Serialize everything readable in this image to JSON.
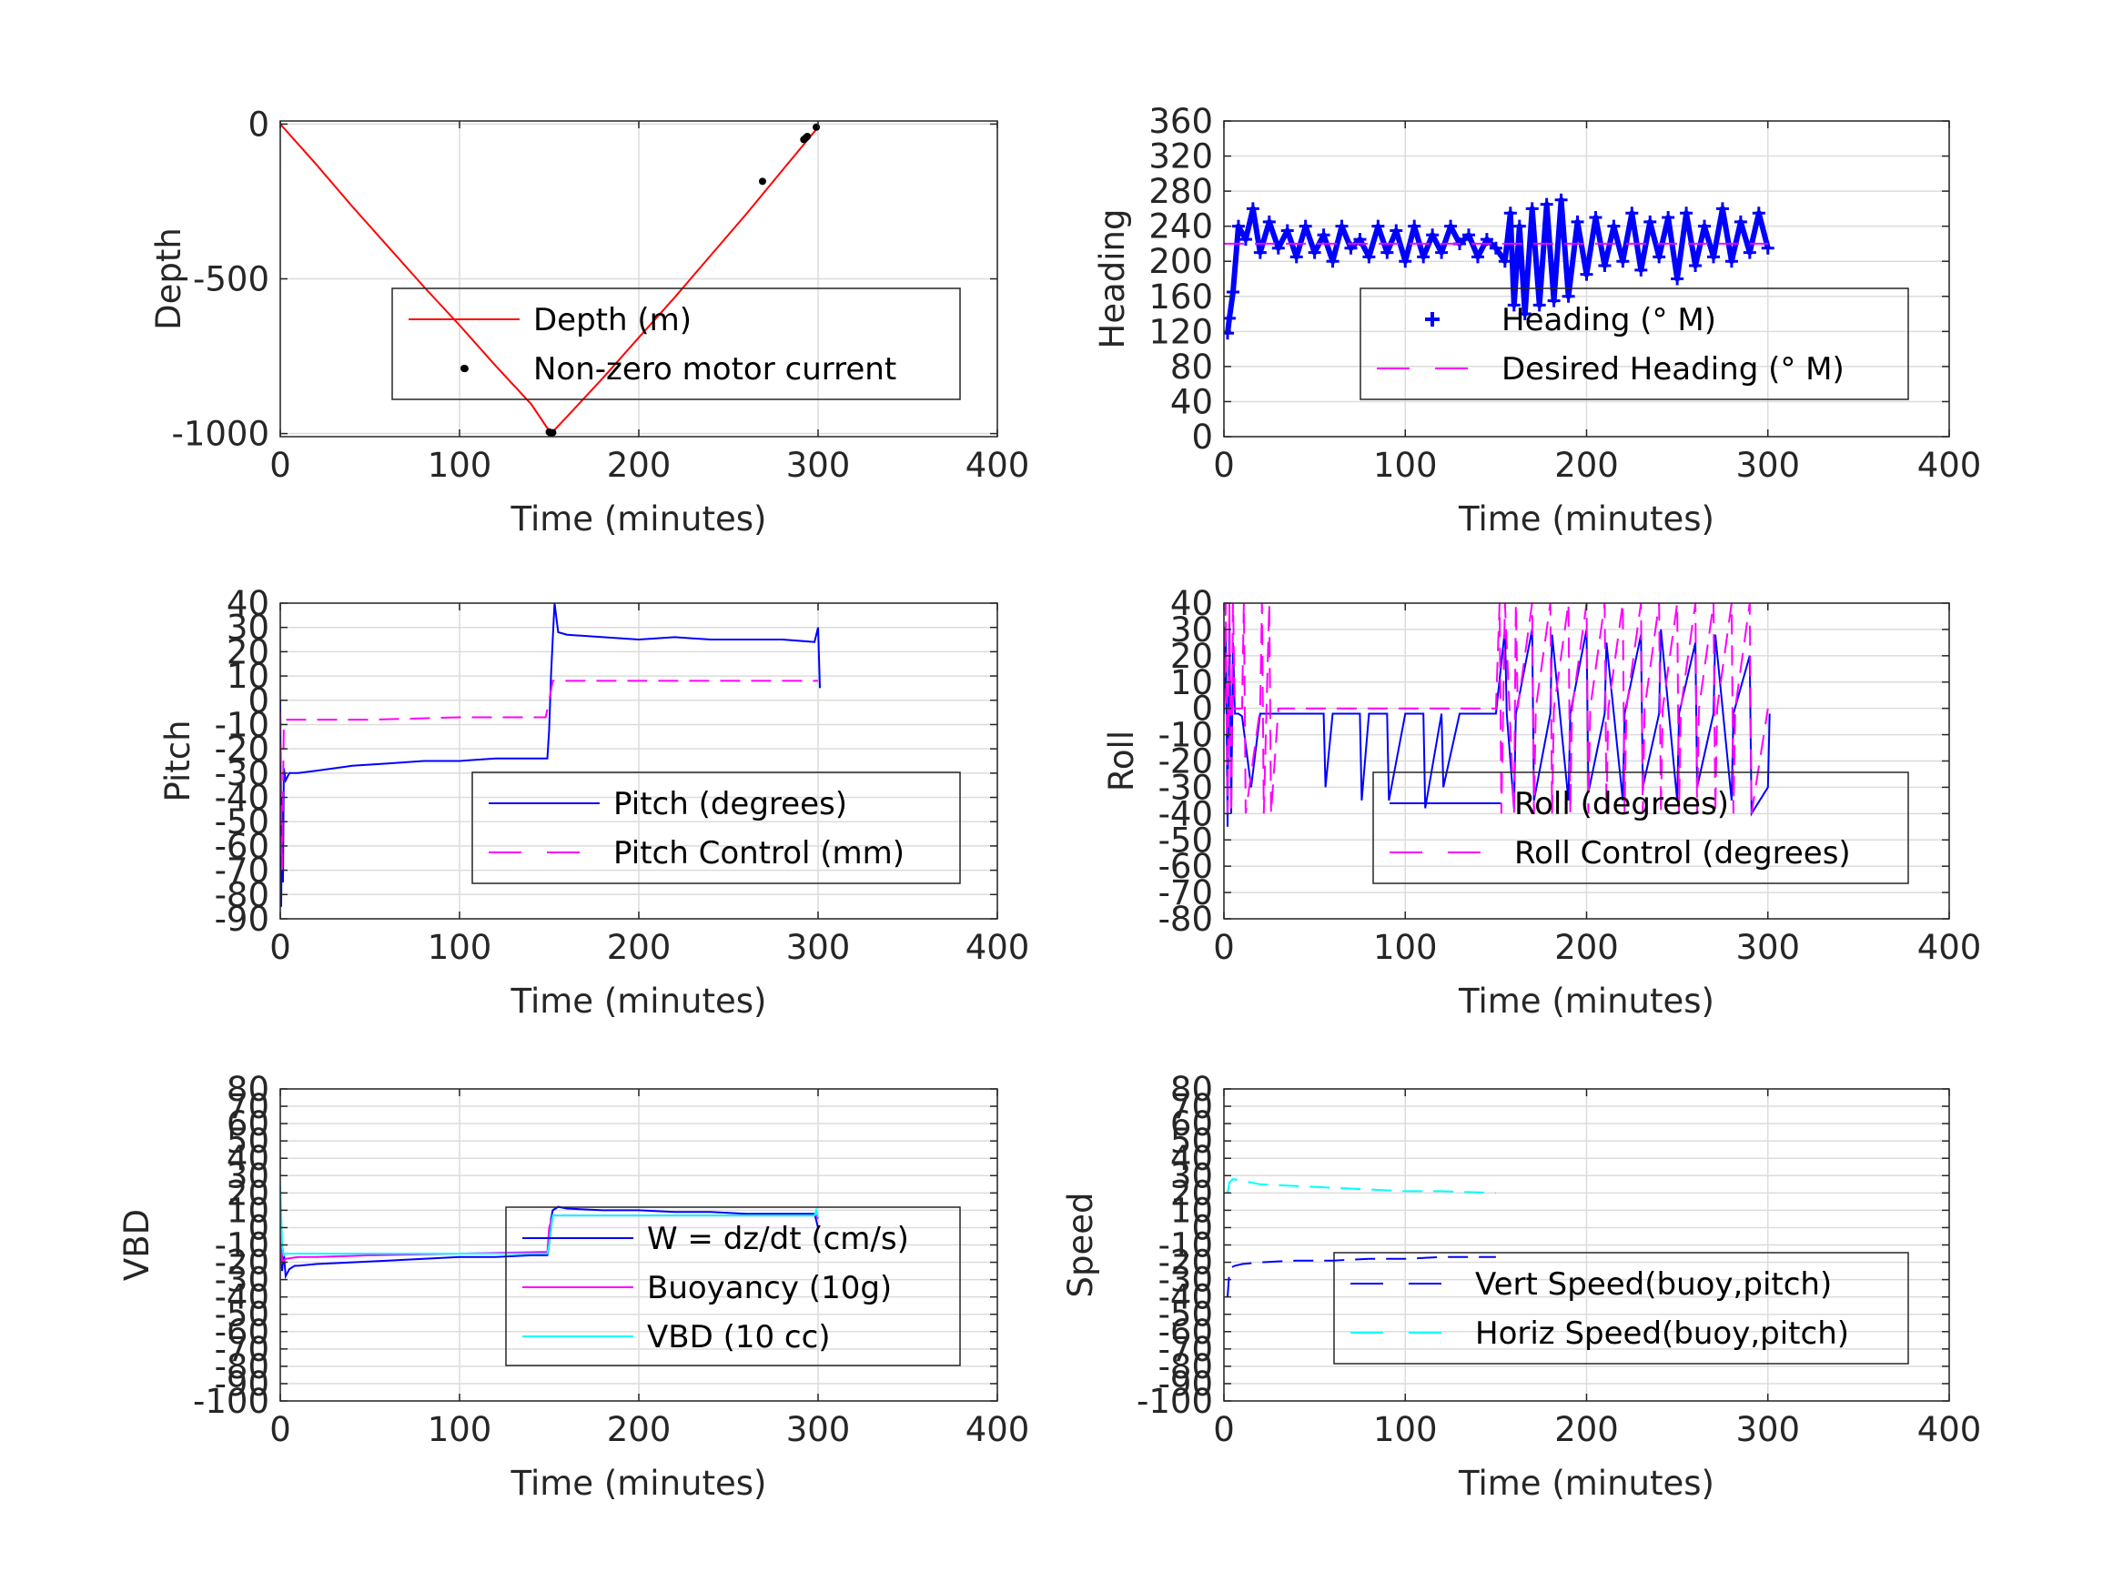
{
  "chart_data": [
    {
      "id": "depth",
      "type": "line",
      "xlabel": "Time (minutes)",
      "ylabel": "Depth",
      "xlim": [
        0,
        400
      ],
      "ylim": [
        -1010,
        10
      ],
      "xticks": [
        0,
        100,
        200,
        300,
        400
      ],
      "yticks": [
        -1000,
        -500,
        0
      ],
      "grid": true,
      "legend_position": "center-right",
      "series": [
        {
          "name": "Depth (m)",
          "color": "#ff0000",
          "style": "solid",
          "x": [
            0,
            20,
            40,
            60,
            80,
            100,
            120,
            140,
            151,
            160,
            180,
            200,
            220,
            240,
            260,
            280,
            300
          ],
          "y": [
            0,
            -130,
            -265,
            -395,
            -525,
            -650,
            -780,
            -905,
            -1000,
            -945,
            -820,
            -690,
            -560,
            -425,
            -290,
            -150,
            -10
          ]
        },
        {
          "name": "Non-zero motor current",
          "color": "#000000",
          "style": "dots",
          "x": [
            103,
            150,
            151,
            152,
            269,
            292,
            293,
            294,
            299
          ],
          "y": [
            -790,
            -995,
            -1000,
            -997,
            -185,
            -50,
            -45,
            -40,
            -10
          ]
        }
      ]
    },
    {
      "id": "heading",
      "type": "line",
      "xlabel": "Time (minutes)",
      "ylabel": "Heading",
      "xlim": [
        0,
        400
      ],
      "ylim": [
        0,
        360
      ],
      "xticks": [
        0,
        100,
        200,
        300,
        400
      ],
      "yticks": [
        0,
        40,
        80,
        120,
        160,
        200,
        240,
        280,
        320,
        360
      ],
      "grid": true,
      "legend_position": "center-right",
      "series": [
        {
          "name": "Heading (° M)",
          "color": "#0000ff",
          "style": "plus",
          "x": [
            2,
            3,
            5,
            8,
            12,
            16,
            20,
            25,
            30,
            35,
            40,
            45,
            50,
            55,
            60,
            65,
            70,
            75,
            80,
            85,
            90,
            95,
            100,
            105,
            110,
            115,
            120,
            125,
            130,
            135,
            140,
            145,
            150,
            155,
            158,
            160,
            163,
            166,
            170,
            174,
            178,
            182,
            186,
            190,
            195,
            200,
            205,
            210,
            215,
            220,
            225,
            230,
            235,
            240,
            245,
            250,
            255,
            260,
            265,
            270,
            275,
            280,
            285,
            290,
            295,
            300
          ],
          "y": [
            118,
            135,
            165,
            240,
            225,
            260,
            210,
            245,
            215,
            235,
            205,
            240,
            210,
            230,
            200,
            240,
            215,
            225,
            205,
            240,
            210,
            235,
            200,
            240,
            205,
            230,
            210,
            240,
            220,
            230,
            205,
            225,
            215,
            200,
            255,
            150,
            240,
            140,
            260,
            150,
            265,
            155,
            270,
            160,
            245,
            185,
            250,
            195,
            240,
            200,
            255,
            190,
            245,
            205,
            250,
            180,
            255,
            195,
            240,
            205,
            260,
            200,
            245,
            210,
            255,
            215
          ]
        },
        {
          "name": "Desired Heading (° M)",
          "color": "#ff00ff",
          "style": "dashed",
          "x": [
            0,
            300
          ],
          "y": [
            220,
            220
          ]
        }
      ]
    },
    {
      "id": "pitch",
      "type": "line",
      "xlabel": "Time (minutes)",
      "ylabel": "Pitch",
      "xlim": [
        0,
        400
      ],
      "ylim": [
        -90,
        40
      ],
      "xticks": [
        0,
        100,
        200,
        300,
        400
      ],
      "yticks": [
        -90,
        -80,
        -70,
        -60,
        -50,
        -40,
        -30,
        -20,
        -10,
        0,
        10,
        20,
        30,
        40
      ],
      "grid": true,
      "legend_position": "center-right",
      "series": [
        {
          "name": "Pitch (degrees)",
          "color": "#0000ff",
          "style": "solid",
          "x": [
            0,
            0.5,
            1,
            1.5,
            2,
            3,
            5,
            10,
            20,
            40,
            60,
            80,
            100,
            120,
            140,
            149,
            150,
            151,
            152,
            153,
            155,
            160,
            180,
            200,
            220,
            240,
            260,
            280,
            298,
            300,
            301
          ],
          "y": [
            0,
            -85,
            -40,
            -75,
            -28,
            -33,
            -30,
            -30,
            -29,
            -27,
            -26,
            -25,
            -25,
            -24,
            -24,
            -24,
            -12,
            10,
            25,
            40,
            28,
            27,
            26,
            25,
            26,
            25,
            25,
            25,
            24,
            30,
            5
          ]
        },
        {
          "name": "Pitch Control (mm)",
          "color": "#ff00ff",
          "style": "dashed",
          "x": [
            0,
            1,
            2,
            3,
            10,
            50,
            100,
            148,
            150,
            152,
            160,
            200,
            250,
            299,
            300
          ],
          "y": [
            -5,
            -70,
            -10,
            -8,
            -8,
            -8,
            -7,
            -7,
            0,
            8,
            8,
            8,
            8,
            8,
            8
          ]
        }
      ]
    },
    {
      "id": "roll",
      "type": "line",
      "xlabel": "Time (minutes)",
      "ylabel": "Roll",
      "xlim": [
        0,
        400
      ],
      "ylim": [
        -80,
        40
      ],
      "xticks": [
        0,
        100,
        200,
        300,
        400
      ],
      "yticks": [
        -80,
        -70,
        -60,
        -50,
        -40,
        -30,
        -20,
        -10,
        0,
        10,
        20,
        30,
        40
      ],
      "grid": true,
      "legend_position": "center-right",
      "series": [
        {
          "name": "Roll (degrees)",
          "color": "#0000ff",
          "style": "solid",
          "x": [
            0,
            1,
            2,
            3,
            4,
            5,
            6,
            8,
            10,
            15,
            20,
            30,
            40,
            50,
            55,
            56,
            60,
            75,
            76,
            80,
            90,
            91,
            100,
            110,
            111,
            120,
            121,
            130,
            150,
            155,
            156,
            160,
            161,
            170,
            171,
            180,
            181,
            190,
            191,
            200,
            201,
            210,
            211,
            220,
            221,
            230,
            231,
            240,
            241,
            250,
            251,
            260,
            261,
            270,
            271,
            280,
            281,
            290,
            291,
            300,
            301
          ],
          "y": [
            -2,
            30,
            -45,
            35,
            -40,
            25,
            -2,
            -2,
            -3,
            -30,
            -2,
            -2,
            -2,
            -2,
            -2,
            -30,
            -2,
            -2,
            -35,
            -2,
            -2,
            -35,
            -2,
            -2,
            -38,
            -2,
            -30,
            -2,
            -2,
            30,
            -2,
            -38,
            -2,
            30,
            -35,
            -2,
            28,
            -35,
            -2,
            30,
            -32,
            -2,
            25,
            -35,
            -2,
            28,
            -30,
            -2,
            30,
            -35,
            -2,
            25,
            -30,
            -2,
            28,
            -35,
            -2,
            20,
            -40,
            -30,
            -2
          ]
        },
        {
          "name": "Roll Control (degrees)",
          "color": "#ff00ff",
          "style": "dashed",
          "x": [
            0,
            1,
            2,
            3,
            4,
            5,
            6,
            10,
            11,
            12,
            20,
            21,
            22,
            25,
            26,
            30,
            50,
            100,
            150,
            152,
            153,
            155,
            160,
            161,
            162,
            170,
            171,
            172,
            180,
            181,
            182,
            190,
            191,
            192,
            200,
            201,
            202,
            210,
            211,
            212,
            220,
            221,
            222,
            230,
            231,
            232,
            240,
            241,
            242,
            250,
            251,
            252,
            260,
            261,
            262,
            270,
            271,
            272,
            280,
            281,
            282,
            290,
            291,
            300
          ],
          "y": [
            0,
            40,
            -40,
            40,
            -40,
            40,
            0,
            0,
            40,
            -40,
            0,
            40,
            -40,
            40,
            -40,
            0,
            0,
            0,
            0,
            40,
            -40,
            40,
            -40,
            40,
            0,
            40,
            -40,
            0,
            40,
            -40,
            0,
            40,
            -40,
            0,
            40,
            -40,
            0,
            40,
            -40,
            0,
            40,
            -40,
            0,
            40,
            -40,
            0,
            40,
            -40,
            0,
            40,
            -40,
            0,
            40,
            -40,
            0,
            40,
            -40,
            0,
            40,
            -40,
            0,
            40,
            -40,
            0
          ]
        }
      ]
    },
    {
      "id": "vbd",
      "type": "line",
      "xlabel": "Time (minutes)",
      "ylabel": "VBD",
      "xlim": [
        0,
        400
      ],
      "ylim": [
        -100,
        80
      ],
      "xticks": [
        0,
        100,
        200,
        300,
        400
      ],
      "yticks": [
        -100,
        -90,
        -80,
        -70,
        -60,
        -50,
        -40,
        -30,
        -20,
        -10,
        0,
        10,
        20,
        30,
        40,
        50,
        60,
        70,
        80
      ],
      "grid": true,
      "legend_position": "center-right",
      "series": [
        {
          "name": "W = dz/dt (cm/s)",
          "color": "#0000ff",
          "style": "solid",
          "x": [
            0,
            1,
            2,
            3,
            5,
            8,
            10,
            20,
            40,
            60,
            80,
            100,
            120,
            140,
            149,
            150,
            151,
            152,
            155,
            160,
            180,
            200,
            220,
            240,
            260,
            280,
            298,
            300
          ],
          "y": [
            0,
            -25,
            -15,
            -28,
            -24,
            -22,
            -22,
            -21,
            -20,
            -19,
            -18,
            -17,
            -17,
            -16,
            -16,
            -10,
            5,
            10,
            12,
            11,
            10,
            10,
            9,
            9,
            8,
            8,
            8,
            0
          ]
        },
        {
          "name": "Buoyancy (10g)",
          "color": "#ff00ff",
          "style": "solid",
          "x": [
            0,
            1,
            3,
            10,
            20,
            50,
            100,
            149,
            150,
            152,
            200,
            250,
            299,
            300
          ],
          "y": [
            0,
            -20,
            -18,
            -17,
            -17,
            -16,
            -15,
            -14,
            0,
            7,
            7,
            7,
            7,
            5
          ]
        },
        {
          "name": "VBD (10 cc)",
          "color": "#00ffff",
          "style": "solid",
          "x": [
            0,
            1,
            2,
            3,
            10,
            50,
            100,
            149,
            150,
            152,
            200,
            250,
            298,
            299,
            300
          ],
          "y": [
            24,
            -10,
            -16,
            -15,
            -15,
            -15,
            -15,
            -15,
            -10,
            7,
            7,
            7,
            7,
            10,
            6
          ]
        }
      ]
    },
    {
      "id": "speed",
      "type": "line",
      "xlabel": "Time (minutes)",
      "ylabel": "Speed",
      "xlim": [
        0,
        400
      ],
      "ylim": [
        -100,
        80
      ],
      "xticks": [
        0,
        100,
        200,
        300,
        400
      ],
      "yticks": [
        -100,
        -90,
        -80,
        -70,
        -60,
        -50,
        -40,
        -30,
        -20,
        -10,
        0,
        10,
        20,
        30,
        40,
        50,
        60,
        70,
        80
      ],
      "grid": true,
      "legend_position": "bottom-right",
      "series": [
        {
          "name": "Vert Speed(buoy,pitch)",
          "color": "#0000ff",
          "style": "dashed",
          "x": [
            2,
            3,
            4,
            6,
            10,
            20,
            40,
            60,
            80,
            100,
            120,
            150
          ],
          "y": [
            -40,
            -25,
            -23,
            -22,
            -21,
            -20,
            -19,
            -19,
            -18,
            -18,
            -17,
            -17
          ]
        },
        {
          "name": "Horiz Speed(buoy,pitch)",
          "color": "#00ffff",
          "style": "dashed",
          "x": [
            2,
            3,
            5,
            10,
            20,
            40,
            60,
            80,
            100,
            120,
            150
          ],
          "y": [
            20,
            26,
            28,
            27,
            25,
            24,
            23,
            22,
            21,
            21,
            20
          ]
        }
      ]
    }
  ]
}
